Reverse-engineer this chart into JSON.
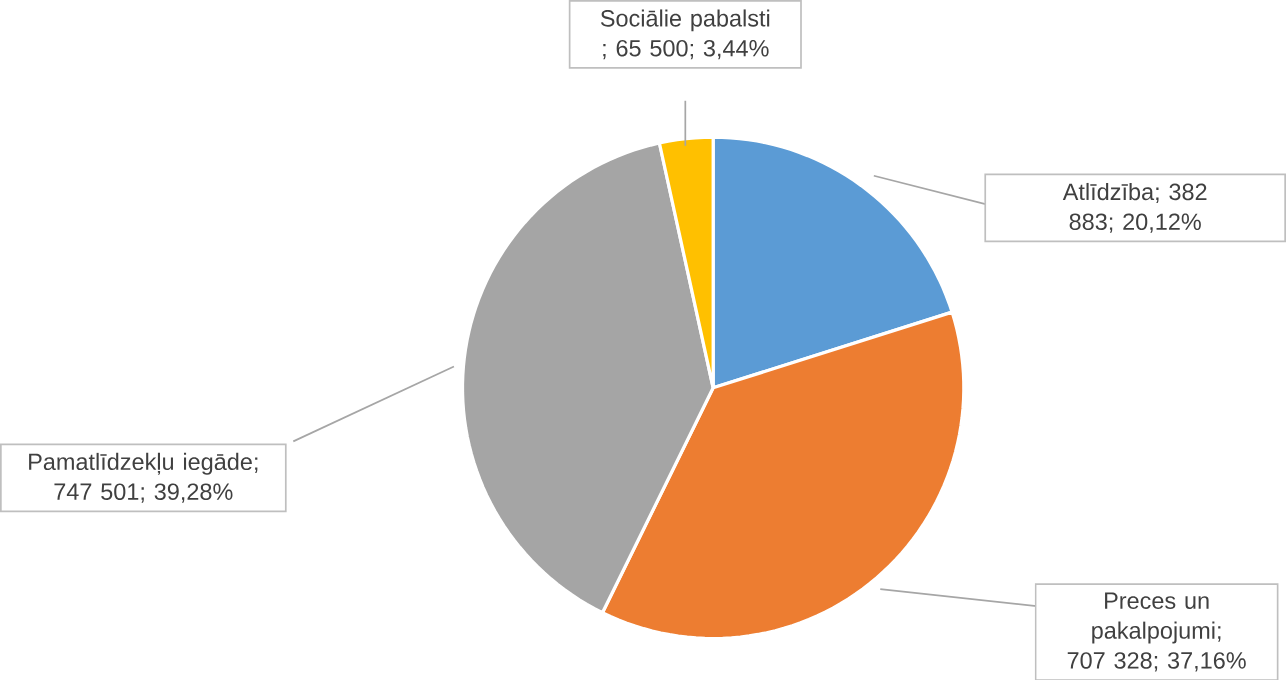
{
  "chart_data": {
    "type": "pie",
    "categories": [
      "Atlīdzība",
      "Preces un pakalpojumi",
      "Pamatlīdzekļu iegāde",
      "Sociālie pabalsti "
    ],
    "values": [
      382883,
      707328,
      747501,
      65500
    ],
    "value_labels": [
      "; 382 883; 20,12%",
      "; 707 328; 37,16%",
      "; 747 501; 39,28%",
      "; 65 500; 3,44%"
    ],
    "colors": [
      "#5b9bd5",
      "#ed7d31",
      "#a5a5a5",
      "#ffc000"
    ],
    "legend": false
  }
}
